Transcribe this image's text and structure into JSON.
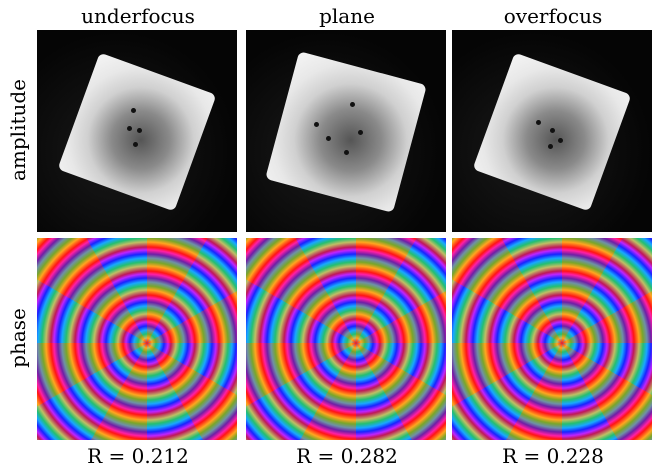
{
  "columns": [
    {
      "title": "underfocus",
      "caption": "R = 0.212"
    },
    {
      "title": "plane",
      "caption": "R = 0.282"
    },
    {
      "title": "overfocus",
      "caption": "R = 0.228"
    }
  ],
  "rows": [
    {
      "label": "amplitude"
    },
    {
      "label": "phase"
    }
  ]
}
